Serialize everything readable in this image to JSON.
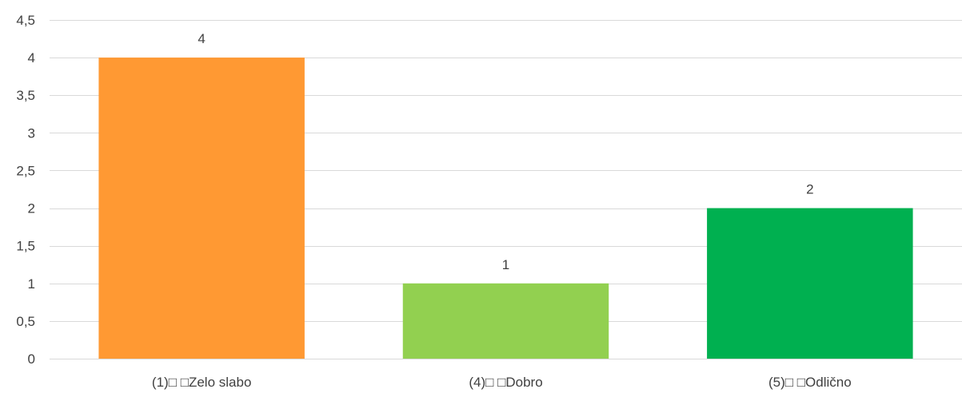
{
  "chart_data": {
    "type": "bar",
    "title": "",
    "xlabel": "",
    "ylabel": "",
    "categories": [
      "(1)□ □Zelo slabo",
      "(4)□ □Dobro",
      "(5)□ □Odlično"
    ],
    "values": [
      4,
      1,
      2
    ],
    "value_labels": [
      "4",
      "1",
      "2"
    ],
    "colors": [
      "#FF9933",
      "#92D050",
      "#00B050"
    ],
    "ylim": [
      0,
      4.5
    ],
    "yticks": [
      0,
      0.5,
      1,
      1.5,
      2,
      2.5,
      3,
      3.5,
      4,
      4.5
    ],
    "ytick_labels": [
      "0",
      "0,5",
      "1",
      "1,5",
      "2",
      "2,5",
      "3",
      "3,5",
      "4",
      "4,5"
    ],
    "grid": true,
    "legend": "none"
  }
}
